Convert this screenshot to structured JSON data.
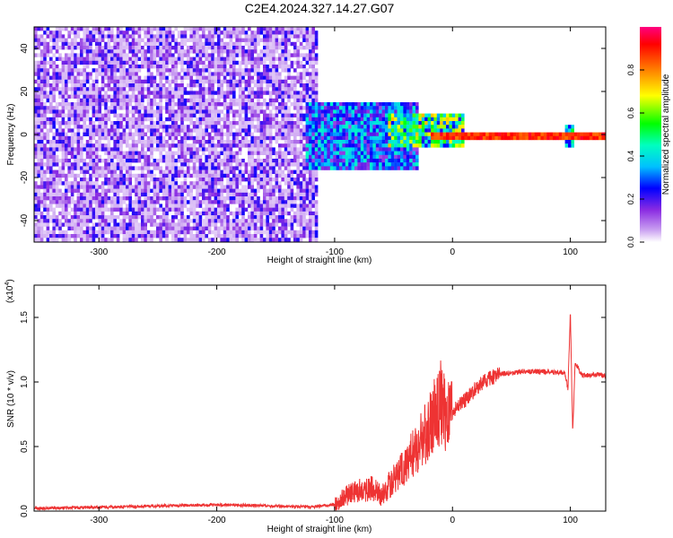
{
  "title": "C2E4.2024.327.14.27.G07",
  "chart_data": [
    {
      "type": "heatmap",
      "xlabel": "Height of straight line (km)",
      "ylabel": "Frequency (Hz)",
      "xlim": [
        -355,
        130
      ],
      "ylim": [
        -50,
        50
      ],
      "xticks": [
        -300,
        -200,
        -100,
        0,
        100
      ],
      "xtick_labels": [
        "-300",
        "-200",
        "-100",
        "0",
        "100"
      ],
      "yticks": [
        -40,
        -20,
        0,
        20,
        40
      ],
      "ytick_labels": [
        "-40",
        "-20",
        "0",
        "20",
        "40"
      ],
      "colorbar": {
        "label": "Normalized spectral amplitude",
        "range": [
          0,
          1
        ],
        "ticks": [
          0.0,
          0.2,
          0.4,
          0.6,
          0.8
        ],
        "tick_labels": [
          "0.0",
          "0.2",
          "0.4",
          "0.6",
          "0.8"
        ],
        "colors": [
          "#ffffff",
          "#8a2be2",
          "#0000ff",
          "#00ffff",
          "#00ff00",
          "#ffff00",
          "#ff8000",
          "#ff0000",
          "#ff0080"
        ]
      },
      "regions": [
        {
          "x_range": [
            -355,
            -115
          ],
          "freq_range": [
            -50,
            50
          ],
          "level": 0.15,
          "description_color": "#8a2be2"
        },
        {
          "x_range": [
            -125,
            -30
          ],
          "freq_range": [
            -15,
            15
          ],
          "level": 0.3
        },
        {
          "x_range": [
            -55,
            10
          ],
          "freq_range": [
            -5,
            10
          ],
          "level": 0.5
        },
        {
          "x_range": [
            -20,
            130
          ],
          "freq_range": [
            -1,
            2
          ],
          "level": 0.95
        },
        {
          "x_range": [
            95,
            102
          ],
          "freq_range": [
            -5,
            5
          ],
          "level": 0.4
        }
      ],
      "grid": false
    },
    {
      "type": "line",
      "xlabel": "Height of straight line (km)",
      "ylabel": "SNR (10 * v/v)",
      "yscale_label": "(x10",
      "yscale_exp": "4",
      "yscale_close": ")",
      "xlim": [
        -355,
        130
      ],
      "ylim": [
        0,
        1.75
      ],
      "xticks": [
        -300,
        -200,
        -100,
        0,
        100
      ],
      "xtick_labels": [
        "-300",
        "-200",
        "-100",
        "0",
        "100"
      ],
      "yticks": [
        0.0,
        0.5,
        1.0,
        1.5
      ],
      "ytick_labels": [
        "0.0",
        "0.5",
        "1.0",
        "1.5"
      ],
      "series": [
        {
          "color": "#ee3333",
          "x": [
            -355,
            -300,
            -250,
            -200,
            -150,
            -120,
            -100,
            -90,
            -80,
            -70,
            -60,
            -50,
            -40,
            -30,
            -20,
            -15,
            -10,
            -5,
            0,
            10,
            20,
            30,
            40,
            60,
            80,
            95,
            98,
            100,
            102,
            104,
            110,
            120,
            130
          ],
          "y": [
            0.02,
            0.03,
            0.04,
            0.05,
            0.04,
            0.03,
            0.05,
            0.12,
            0.16,
            0.18,
            0.12,
            0.25,
            0.35,
            0.5,
            0.65,
            0.75,
            0.85,
            0.72,
            0.78,
            0.85,
            0.95,
            1.02,
            1.06,
            1.08,
            1.08,
            1.07,
            0.95,
            1.55,
            0.6,
            1.15,
            1.05,
            1.06,
            1.05
          ]
        }
      ],
      "grid": false
    }
  ]
}
